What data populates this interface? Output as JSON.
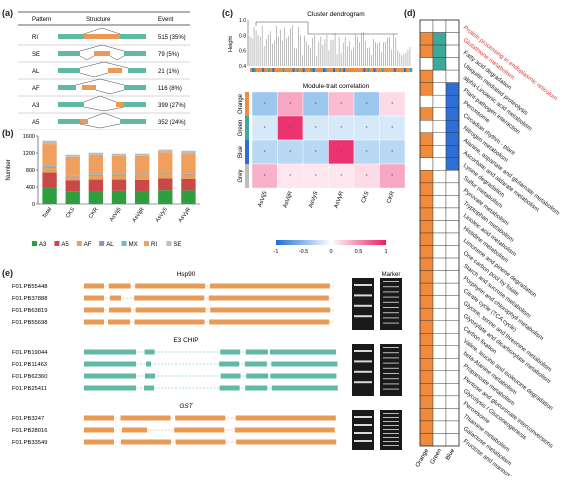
{
  "panel_a": {
    "letter": "(a)",
    "headers": [
      "Pattern",
      "Structure",
      "Event"
    ],
    "rows": [
      {
        "pattern": "RI",
        "event": "515 (35%)"
      },
      {
        "pattern": "SE",
        "event": "79 (5%)"
      },
      {
        "pattern": "AL",
        "event": "21 (1%)"
      },
      {
        "pattern": "AF",
        "event": "116 (8%)"
      },
      {
        "pattern": "A3",
        "event": "399 (27%)"
      },
      {
        "pattern": "A5",
        "event": "352 (24%)"
      }
    ]
  },
  "panel_b": {
    "letter": "(b)",
    "chart_data": {
      "type": "bar",
      "stacked": true,
      "categories": [
        "Total",
        "CKS",
        "CKR",
        "AsVij5",
        "AsVijR",
        "AsVyS",
        "AsVyR"
      ],
      "ylabel": "Number",
      "ylim": [
        0,
        1600
      ],
      "yticks": [
        0,
        400,
        800,
        1200,
        1600
      ],
      "series": [
        {
          "name": "A3",
          "color": "#2e9e3e",
          "values": [
            390,
            300,
            305,
            310,
            305,
            325,
            320
          ]
        },
        {
          "name": "A5",
          "color": "#c94848",
          "values": [
            350,
            260,
            270,
            265,
            265,
            280,
            275
          ]
        },
        {
          "name": "AF",
          "color": "#e8a25a",
          "values": [
            120,
            90,
            95,
            92,
            93,
            100,
            98
          ]
        },
        {
          "name": "AL",
          "color": "#9a8cc6",
          "values": [
            20,
            15,
            16,
            15,
            15,
            17,
            16
          ]
        },
        {
          "name": "MX",
          "color": "#74b5c9",
          "values": [
            20,
            15,
            16,
            15,
            15,
            17,
            16
          ]
        },
        {
          "name": "RI",
          "color": "#efa05e",
          "values": [
            510,
            430,
            450,
            435,
            440,
            480,
            470
          ]
        },
        {
          "name": "SE",
          "color": "#bdbdbd",
          "values": [
            80,
            50,
            55,
            52,
            52,
            60,
            58
          ]
        }
      ],
      "legend": "bottom"
    }
  },
  "panel_c": {
    "letter": "(c)",
    "dendro_title": "Cluster dendrogram",
    "height_label": "Height",
    "height_ticks": [
      "1.0",
      "0.8",
      "0.6",
      "0.4"
    ],
    "heat_title": "Module-trait correlation",
    "chart_data": {
      "type": "heatmap",
      "rows": [
        "Orange",
        "Green",
        "Blue",
        "Grey"
      ],
      "columns": [
        "AsVij5",
        "AsVijR",
        "AsVyS",
        "AsVyR",
        "CKS",
        "CKR"
      ],
      "values": [
        [
          0.15,
          0.35,
          0.3,
          0.25,
          0.3,
          0.1
        ],
        [
          0.1,
          0.9,
          0.05,
          0.05,
          0.1,
          0.05
        ],
        [
          0.1,
          0.05,
          0.05,
          0.9,
          0.1,
          0.05
        ],
        [
          0.3,
          0.05,
          0.05,
          0.05,
          0.1,
          0.35
        ]
      ],
      "scale": {
        "min": -1,
        "max": 1,
        "ticks": [
          "-1",
          "-0.5",
          "0",
          "0.5",
          "1"
        ]
      }
    }
  },
  "panel_d": {
    "letter": "(d)",
    "columns": [
      "Orange",
      "Green",
      "Blue"
    ],
    "pathways": [
      {
        "name": "Protein processing in endoplasmic reticulum",
        "highlight": true,
        "cells": [
          0,
          0,
          0
        ]
      },
      {
        "name": "Glutathione metabolism",
        "highlight": true,
        "cells": [
          1,
          1,
          0
        ]
      },
      {
        "name": "Fatty acid degradation",
        "highlight": false,
        "cells": [
          1,
          1,
          0
        ]
      },
      {
        "name": "Ubiquitin mediated proteolysis",
        "highlight": false,
        "cells": [
          0,
          1,
          0
        ]
      },
      {
        "name": "alpha-Linolenic acid metabolism",
        "highlight": false,
        "cells": [
          1,
          0,
          0
        ]
      },
      {
        "name": "Plant-pathogen interaction",
        "highlight": false,
        "cells": [
          1,
          0,
          1
        ]
      },
      {
        "name": "Peroxisome",
        "highlight": false,
        "cells": [
          0,
          0,
          1
        ]
      },
      {
        "name": "Circadian rhythm - plant",
        "highlight": false,
        "cells": [
          1,
          0,
          1
        ]
      },
      {
        "name": "Nitrogen metabolism",
        "highlight": false,
        "cells": [
          0,
          0,
          1
        ]
      },
      {
        "name": "Alanine, aspartate and glutamate metabolism",
        "highlight": false,
        "cells": [
          1,
          0,
          1
        ]
      },
      {
        "name": "Ascorbate and aldarate metabolism",
        "highlight": false,
        "cells": [
          1,
          0,
          1
        ]
      },
      {
        "name": "Lysine degradation",
        "highlight": false,
        "cells": [
          0,
          0,
          1
        ]
      },
      {
        "name": "Sulfur metabolism",
        "highlight": false,
        "cells": [
          1,
          0,
          0
        ]
      },
      {
        "name": "Pyruvate metabolism",
        "highlight": false,
        "cells": [
          1,
          0,
          0
        ]
      },
      {
        "name": "Tryptophan metabolism",
        "highlight": false,
        "cells": [
          1,
          0,
          0
        ]
      },
      {
        "name": "Linoleic acid metabolism",
        "highlight": false,
        "cells": [
          1,
          0,
          0
        ]
      },
      {
        "name": "Histidine metabolism",
        "highlight": false,
        "cells": [
          1,
          0,
          0
        ]
      },
      {
        "name": "Limonene and pinene degradation",
        "highlight": false,
        "cells": [
          1,
          0,
          0
        ]
      },
      {
        "name": "One carbon pool by folate",
        "highlight": false,
        "cells": [
          1,
          0,
          0
        ]
      },
      {
        "name": "Starch and sucrose metabolism",
        "highlight": false,
        "cells": [
          1,
          0,
          0
        ]
      },
      {
        "name": "Porphyrin and chlorophyll metabolism",
        "highlight": false,
        "cells": [
          1,
          0,
          0
        ]
      },
      {
        "name": "Citrate cycle (TCA cycle)",
        "highlight": false,
        "cells": [
          1,
          0,
          0
        ]
      },
      {
        "name": "Glycine, serine and threonine metabolism",
        "highlight": false,
        "cells": [
          1,
          0,
          0
        ]
      },
      {
        "name": "Glyoxylate and dicarboxylate metabolism",
        "highlight": false,
        "cells": [
          1,
          0,
          0
        ]
      },
      {
        "name": "Carbon fixation",
        "highlight": false,
        "cells": [
          1,
          0,
          0
        ]
      },
      {
        "name": "Valine, leucine and isoleucine degradation",
        "highlight": false,
        "cells": [
          1,
          0,
          0
        ]
      },
      {
        "name": "beta-Alanine metabolism",
        "highlight": false,
        "cells": [
          1,
          0,
          0
        ]
      },
      {
        "name": "Propanoate metabolism",
        "highlight": false,
        "cells": [
          1,
          0,
          0
        ]
      },
      {
        "name": "Pentose and glucuronate interconversions",
        "highlight": false,
        "cells": [
          1,
          0,
          0
        ]
      },
      {
        "name": "Glycolysis / Gluconeogenesis",
        "highlight": false,
        "cells": [
          1,
          0,
          0
        ]
      },
      {
        "name": "Peroxisome",
        "highlight": false,
        "cells": [
          1,
          0,
          0
        ]
      },
      {
        "name": "Thiamine metabolism",
        "highlight": false,
        "cells": [
          1,
          0,
          0
        ]
      },
      {
        "name": "Galactose metabolism",
        "highlight": false,
        "cells": [
          1,
          0,
          0
        ]
      },
      {
        "name": "Fructose and mannose",
        "highlight": false,
        "cells": [
          1,
          0,
          0
        ]
      }
    ],
    "colors": {
      "orange": "#f08a3c",
      "green": "#3ea89a",
      "blue": "#2e6fd6",
      "highlight_text": "#e03a3a"
    }
  },
  "panel_e": {
    "letter": "(e)",
    "marker_label": "Marker",
    "groups": [
      {
        "title": "Hsp90",
        "italic": false,
        "color": "#e99a55",
        "isoforms": [
          "F01.PB55448",
          "F01.PB37888",
          "F01.PB63819",
          "F01.PB55698"
        ]
      },
      {
        "title": "E3 CHIP",
        "italic": false,
        "color": "#5fb9a4",
        "isoforms": [
          "F01.PB19044",
          "F01.PB11463",
          "F01.PB62360",
          "F01.PB25411"
        ]
      },
      {
        "title": "GST",
        "italic": true,
        "color": "#e99a55",
        "isoforms": [
          "F01.PB3247",
          "F01.PB28016",
          "F01.PB33549"
        ]
      }
    ]
  }
}
